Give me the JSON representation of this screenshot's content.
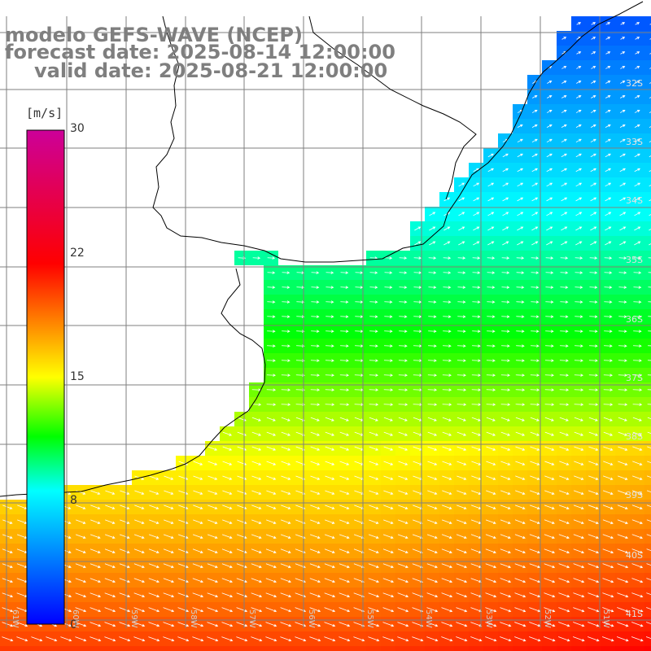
{
  "title": {
    "model": "modelo GEFS-WAVE (NCEP)",
    "forecast": "forecast date: 2025-08-14 12:00:00",
    "valid": "valid date: 2025-08-21 12:00:00"
  },
  "colorbar": {
    "unit": "[m/s]",
    "ticks": [
      "30",
      "22",
      "15",
      "8",
      "0"
    ],
    "tick_values": [
      30,
      22,
      15,
      8,
      0
    ],
    "min": 0,
    "max": 30
  },
  "latitude_labels": [
    "32S",
    "33S",
    "34S",
    "35S",
    "36S",
    "37S",
    "38S",
    "39S",
    "40S",
    "41S"
  ],
  "longitude_labels": [
    "61W",
    "60W",
    "59W",
    "58W",
    "57W",
    "56W",
    "55W",
    "54W",
    "53W",
    "52W",
    "51W"
  ],
  "colors": {
    "land": "#ffffff",
    "coast": "#000000",
    "grid": "#7f7f7f",
    "arrow": "#ffffff",
    "title": "#7f7f7f"
  }
}
